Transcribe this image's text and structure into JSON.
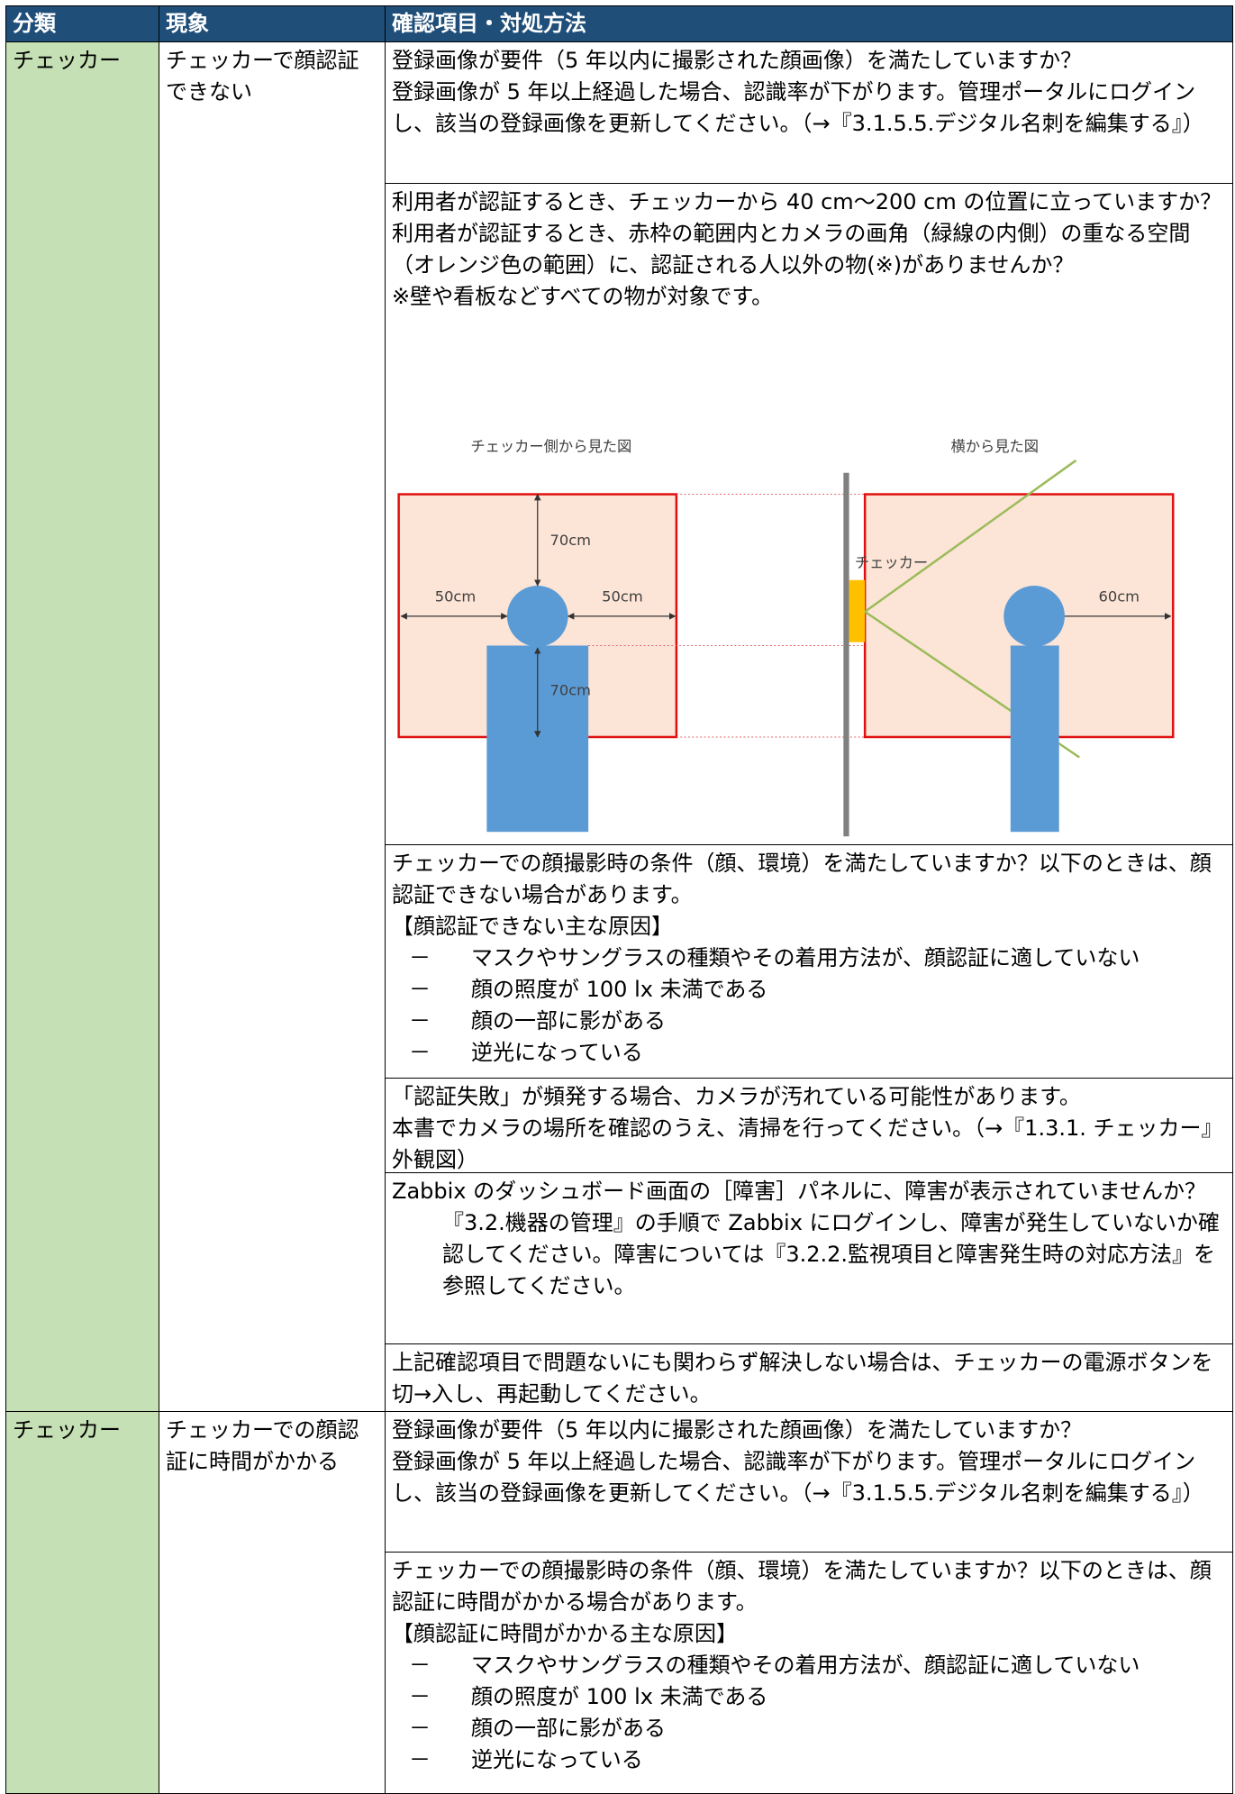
{
  "header": [
    "分類",
    "現象",
    "確認項目・対処方法"
  ],
  "bullet_marker": "－",
  "groups": [
    {
      "category": "チェッカー",
      "symptom": "チェッカーで顔認証できない",
      "items": [
        {
          "paragraphs": [
            "登録画像が要件（5 年以内に撮影された顔画像）を満たしていますか？",
            "登録画像が 5 年以上経過した場合、認識率が下がります。管理ポータルにログインし、該当の登録画像を更新してください。（→『3.1.5.5.デジタル名刺を編集する』）"
          ]
        },
        {
          "paragraphs": [
            "利用者が認証するとき、チェッカーから 40 cm〜200 cm の位置に立っていますか？",
            "利用者が認証するとき、赤枠の範囲内とカメラの画角（緑線の内側）の重なる空間（オレンジ色の範囲）に、認証される人以外の物(※)がありませんか？",
            "※壁や看板などすべての物が対象です。"
          ],
          "diagram": {
            "front_title": "チェッカー側から見た図",
            "side_title": "横から見た図",
            "checker_label": "チェッカー",
            "top_dim": "70cm",
            "left_dim": "50cm",
            "right_dim": "50cm",
            "bottom_dim": "70cm",
            "side_dim": "60cm"
          }
        },
        {
          "paragraphs": [
            "チェッカーでの顔撮影時の条件（顔、環境）を満たしていますか？以下のときは、顔認証できない場合があります。"
          ],
          "heading": "【顔認証できない主な原因】",
          "bullets": [
            "マスクやサングラスの種類やその着用方法が、顔認証に適していない",
            "顔の照度が 100 lx 未満である",
            "顔の一部に影がある",
            "逆光になっている"
          ]
        },
        {
          "paragraphs": [
            "「認証失敗」が頻発する場合、カメラが汚れている可能性があります。",
            "本書でカメラの場所を確認のうえ、清掃を行ってください。（→『1.3.1. チェッカー』外観図）"
          ]
        },
        {
          "paragraphs": [
            "Zabbix のダッシュボード画面の［障害］パネルに、障害が表示されていませんか？"
          ],
          "note": "『3.2.機器の管理』の手順で Zabbix にログインし、障害が発生していないか確認してください。障害については『3.2.2.監視項目と障害発生時の対応方法』を参照してください。"
        },
        {
          "paragraphs": [
            "上記確認項目で問題ないにも関わらず解決しない場合は、チェッカーの電源ボタンを切→入し、再起動してください。"
          ]
        }
      ]
    },
    {
      "category": "チェッカー",
      "symptom": "チェッカーでの顔認証に時間がかかる",
      "items": [
        {
          "paragraphs": [
            "登録画像が要件（5 年以内に撮影された顔画像）を満たしていますか？",
            "登録画像が 5 年以上経過した場合、認識率が下がります。管理ポータルにログインし、該当の登録画像を更新してください。（→『3.1.5.5.デジタル名刺を編集する』）"
          ]
        },
        {
          "paragraphs": [
            "チェッカーでの顔撮影時の条件（顔、環境）を満たしていますか？以下のときは、顔認証に時間がかかる場合があります。"
          ],
          "heading": "【顔認証に時間がかかる主な原因】",
          "bullets": [
            "マスクやサングラスの種類やその着用方法が、顔認証に適していない",
            "顔の照度が 100 lx 未満である",
            "顔の一部に影がある",
            "逆光になっている"
          ]
        }
      ]
    }
  ]
}
